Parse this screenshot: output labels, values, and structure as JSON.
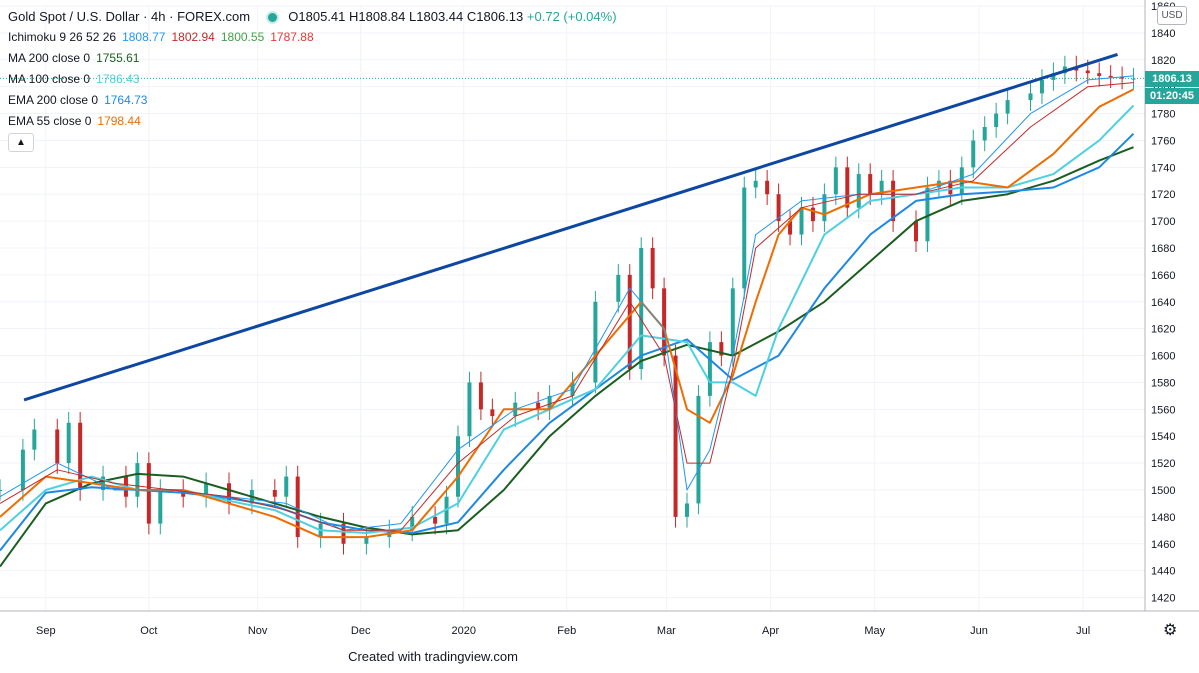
{
  "header": {
    "title": "Gold Spot / U.S. Dollar · 4h · FOREX.com",
    "ohlc": {
      "open": "O1805.41",
      "high": "H1808.84",
      "low": "L1803.44",
      "close": "C1806.13",
      "change": "+0.72 (+0.04%)"
    }
  },
  "indicators": [
    {
      "label": "Ichimoku 9 26 52 26",
      "values": [
        {
          "v": "1808.77",
          "color": "#2196f3"
        },
        {
          "v": "1802.94",
          "color": "#c62828"
        },
        {
          "v": "1800.55",
          "color": "#43a047"
        },
        {
          "v": "1787.88",
          "color": "#e53935"
        }
      ]
    },
    {
      "label": "MA 200 close 0",
      "values": [
        {
          "v": "1755.61",
          "color": "#1b5e20"
        }
      ]
    },
    {
      "label": "MA 100 close 0",
      "values": [
        {
          "v": "1786.43",
          "color": "#4dd0e1"
        }
      ]
    },
    {
      "label": "EMA 200 close 0",
      "values": [
        {
          "v": "1764.73",
          "color": "#1e88e5"
        }
      ]
    },
    {
      "label": "EMA 55 close 0",
      "values": [
        {
          "v": "1798.44",
          "color": "#ef6c00"
        }
      ]
    }
  ],
  "collapse_icon": "chevron-up-icon",
  "currency": "USD",
  "last_price": "1806.13",
  "countdown": "01:20:45",
  "footer": "Created with tradingview.com",
  "chart_data": {
    "type": "line",
    "symbol": "XAUUSD",
    "timeframe": "4h",
    "ylim": [
      1410,
      1860
    ],
    "y_ticks": [
      1420,
      1440,
      1460,
      1480,
      1500,
      1520,
      1540,
      1560,
      1580,
      1600,
      1620,
      1640,
      1660,
      1680,
      1700,
      1720,
      1740,
      1760,
      1780,
      1800,
      1820,
      1840,
      1860
    ],
    "x_labels": [
      "Sep",
      "Oct",
      "Nov",
      "Dec",
      "2020",
      "Feb",
      "Mar",
      "Apr",
      "May",
      "Jun",
      "Jul"
    ],
    "x_label_pos": [
      0.04,
      0.13,
      0.225,
      0.315,
      0.405,
      0.495,
      0.582,
      0.673,
      0.764,
      0.855,
      0.946
    ],
    "x_range": [
      0,
      1
    ],
    "current_price_line": 1806.13,
    "trendline": {
      "from": {
        "x": 0.021,
        "y": 1567
      },
      "to": {
        "x": 0.976,
        "y": 1824
      },
      "color": "#0d47a1"
    },
    "series": [
      {
        "name": "price",
        "kind": "candles",
        "up_color": "#26a69a",
        "down_color": "#c62828",
        "x": [
          0,
          0.02,
          0.03,
          0.05,
          0.06,
          0.07,
          0.09,
          0.11,
          0.12,
          0.13,
          0.14,
          0.16,
          0.18,
          0.2,
          0.22,
          0.24,
          0.25,
          0.26,
          0.28,
          0.3,
          0.32,
          0.34,
          0.36,
          0.38,
          0.39,
          0.4,
          0.41,
          0.42,
          0.43,
          0.45,
          0.47,
          0.48,
          0.5,
          0.52,
          0.54,
          0.55,
          0.56,
          0.57,
          0.58,
          0.59,
          0.6,
          0.61,
          0.62,
          0.63,
          0.64,
          0.65,
          0.66,
          0.67,
          0.68,
          0.69,
          0.7,
          0.71,
          0.72,
          0.73,
          0.74,
          0.75,
          0.76,
          0.77,
          0.78,
          0.8,
          0.81,
          0.82,
          0.83,
          0.84,
          0.85,
          0.86,
          0.87,
          0.88,
          0.9,
          0.91,
          0.92,
          0.93,
          0.94,
          0.95,
          0.96,
          0.97,
          0.98,
          0.99
        ],
        "y": [
          1500,
          1530,
          1545,
          1520,
          1550,
          1500,
          1510,
          1495,
          1520,
          1475,
          1500,
          1495,
          1505,
          1490,
          1500,
          1495,
          1510,
          1465,
          1475,
          1460,
          1465,
          1470,
          1480,
          1475,
          1495,
          1540,
          1580,
          1560,
          1555,
          1565,
          1560,
          1570,
          1580,
          1640,
          1660,
          1590,
          1680,
          1650,
          1600,
          1480,
          1490,
          1570,
          1610,
          1600,
          1650,
          1725,
          1730,
          1720,
          1700,
          1690,
          1710,
          1700,
          1720,
          1740,
          1710,
          1735,
          1720,
          1730,
          1700,
          1685,
          1725,
          1730,
          1720,
          1740,
          1760,
          1770,
          1780,
          1790,
          1795,
          1805,
          1810,
          1815,
          1812,
          1810,
          1808,
          1807,
          1806,
          1806
        ]
      },
      {
        "name": "MA 200 close 0",
        "kind": "line",
        "color": "#1b5e20",
        "x": [
          0,
          0.04,
          0.08,
          0.12,
          0.16,
          0.2,
          0.24,
          0.28,
          0.32,
          0.36,
          0.4,
          0.44,
          0.48,
          0.52,
          0.56,
          0.6,
          0.64,
          0.68,
          0.72,
          0.76,
          0.8,
          0.84,
          0.88,
          0.92,
          0.96,
          0.99
        ],
        "y": [
          1443,
          1490,
          1505,
          1512,
          1510,
          1500,
          1490,
          1480,
          1472,
          1467,
          1470,
          1500,
          1540,
          1570,
          1596,
          1608,
          1600,
          1618,
          1640,
          1670,
          1700,
          1715,
          1720,
          1730,
          1745,
          1755
        ]
      },
      {
        "name": "EMA 200 close 0",
        "kind": "line",
        "color": "#1e88e5",
        "x": [
          0,
          0.04,
          0.08,
          0.12,
          0.16,
          0.2,
          0.24,
          0.28,
          0.32,
          0.36,
          0.4,
          0.44,
          0.48,
          0.52,
          0.56,
          0.6,
          0.64,
          0.68,
          0.72,
          0.76,
          0.8,
          0.84,
          0.88,
          0.92,
          0.96,
          0.99
        ],
        "y": [
          1455,
          1498,
          1502,
          1500,
          1498,
          1494,
          1488,
          1476,
          1470,
          1468,
          1476,
          1515,
          1550,
          1575,
          1600,
          1612,
          1582,
          1600,
          1650,
          1690,
          1715,
          1720,
          1722,
          1725,
          1740,
          1765
        ]
      },
      {
        "name": "MA 100 close 0",
        "kind": "line",
        "color": "#4dd0e1",
        "x": [
          0,
          0.04,
          0.08,
          0.12,
          0.16,
          0.2,
          0.24,
          0.28,
          0.32,
          0.36,
          0.4,
          0.44,
          0.48,
          0.52,
          0.56,
          0.6,
          0.62,
          0.64,
          0.66,
          0.68,
          0.72,
          0.76,
          0.8,
          0.84,
          0.88,
          0.92,
          0.96,
          0.99
        ],
        "y": [
          1470,
          1500,
          1510,
          1500,
          1500,
          1492,
          1485,
          1470,
          1468,
          1472,
          1490,
          1545,
          1560,
          1575,
          1615,
          1610,
          1580,
          1580,
          1570,
          1620,
          1690,
          1715,
          1720,
          1725,
          1725,
          1735,
          1760,
          1786
        ]
      },
      {
        "name": "EMA 55 close 0",
        "kind": "line",
        "color": "#ef6c00",
        "x": [
          0,
          0.04,
          0.08,
          0.12,
          0.16,
          0.2,
          0.24,
          0.28,
          0.32,
          0.36,
          0.4,
          0.44,
          0.48,
          0.52,
          0.56,
          0.58,
          0.6,
          0.62,
          0.64,
          0.66,
          0.68,
          0.7,
          0.72,
          0.76,
          0.8,
          0.84,
          0.88,
          0.92,
          0.96,
          0.99
        ],
        "y": [
          1480,
          1510,
          1505,
          1500,
          1500,
          1490,
          1480,
          1465,
          1465,
          1470,
          1510,
          1560,
          1560,
          1600,
          1640,
          1620,
          1560,
          1550,
          1585,
          1640,
          1690,
          1710,
          1705,
          1720,
          1725,
          1730,
          1725,
          1750,
          1785,
          1798
        ]
      },
      {
        "name": "Ichimoku conversion",
        "kind": "line",
        "color": "#2196f3",
        "x": [
          0,
          0.05,
          0.1,
          0.15,
          0.2,
          0.25,
          0.3,
          0.35,
          0.4,
          0.45,
          0.5,
          0.55,
          0.58,
          0.6,
          0.62,
          0.64,
          0.66,
          0.7,
          0.75,
          0.8,
          0.85,
          0.9,
          0.95,
          0.99
        ],
        "y": [
          1495,
          1520,
          1500,
          1500,
          1495,
          1490,
          1470,
          1475,
          1530,
          1560,
          1575,
          1650,
          1620,
          1500,
          1530,
          1600,
          1690,
          1715,
          1720,
          1720,
          1735,
          1780,
          1805,
          1808
        ]
      },
      {
        "name": "Ichimoku base",
        "kind": "line",
        "color": "#c62828",
        "x": [
          0,
          0.05,
          0.1,
          0.15,
          0.2,
          0.25,
          0.3,
          0.35,
          0.4,
          0.45,
          0.5,
          0.55,
          0.58,
          0.6,
          0.62,
          0.64,
          0.66,
          0.7,
          0.75,
          0.8,
          0.85,
          0.9,
          0.95,
          0.99
        ],
        "y": [
          1490,
          1515,
          1505,
          1500,
          1495,
          1485,
          1470,
          1470,
          1520,
          1555,
          1570,
          1640,
          1600,
          1520,
          1520,
          1590,
          1680,
          1710,
          1720,
          1720,
          1730,
          1770,
          1800,
          1803
        ]
      }
    ]
  }
}
